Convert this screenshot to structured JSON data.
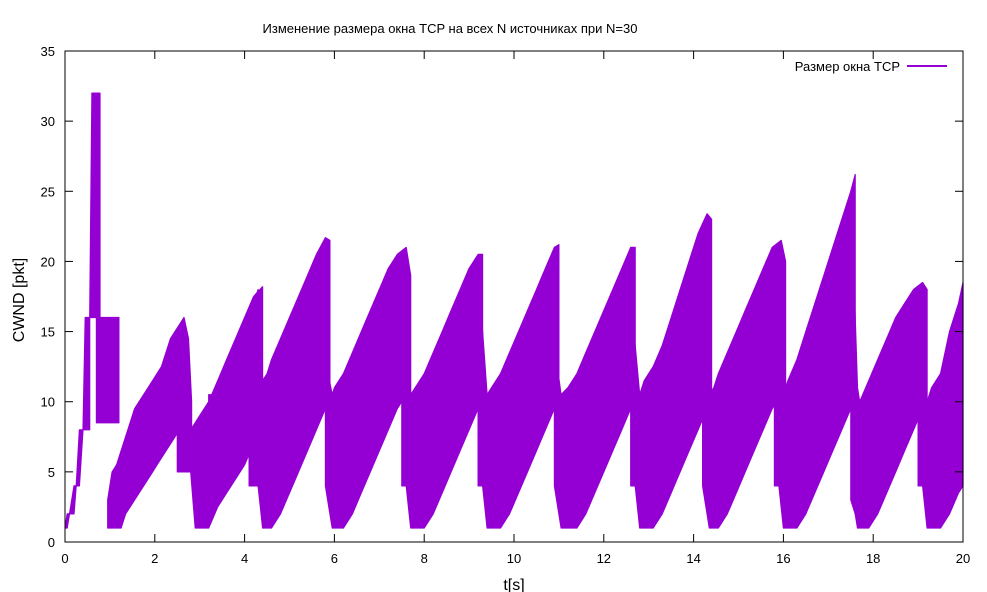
{
  "chart_data": {
    "type": "line",
    "title": "Изменение размера окна TCP на всех N источниках  при N=30",
    "xlabel": "t[s]",
    "ylabel": "CWND [pkt]",
    "xlim": [
      0,
      20
    ],
    "ylim": [
      0,
      35
    ],
    "xticks": [
      0,
      2,
      4,
      6,
      8,
      10,
      12,
      14,
      16,
      18,
      20
    ],
    "yticks": [
      0,
      5,
      10,
      15,
      20,
      25,
      30,
      35
    ],
    "xtick_labels": [
      "0",
      "2",
      "4",
      "6",
      "8",
      "10",
      "12",
      "14",
      "16",
      "18",
      "20"
    ],
    "ytick_labels": [
      "0",
      "5",
      "10",
      "15",
      "20",
      "25",
      "30",
      "35"
    ],
    "grid": false,
    "legend_position": "top-right",
    "series": [
      {
        "name": "Размер окна TCP",
        "color": "#9400d3",
        "bands": [
          {
            "x": [
              0.0,
              0.05,
              0.1,
              0.2,
              0.25,
              0.32,
              0.4,
              0.45,
              0.55
            ],
            "lo": [
              1,
              1,
              2,
              2,
              4,
              4,
              8,
              8,
              8
            ],
            "hi": [
              1,
              2,
              2,
              4,
              4,
              8,
              8,
              16,
              16
            ]
          },
          {
            "x": [
              0.55,
              0.6,
              0.62,
              0.7,
              0.75,
              0.78
            ],
            "lo": [
              16,
              16,
              16,
              16,
              16,
              16
            ],
            "hi": [
              16,
              32,
              32,
              32,
              32,
              32
            ]
          },
          {
            "x": [
              0.7,
              0.75,
              0.8,
              0.9,
              1.0,
              1.1,
              1.15,
              1.2
            ],
            "lo": [
              8.5,
              8.5,
              8.5,
              8.5,
              8.5,
              8.5,
              8.5,
              8.5
            ],
            "hi": [
              16,
              16,
              16,
              16,
              16,
              16,
              16,
              16
            ]
          },
          {
            "x": [
              0.95,
              1.0,
              1.05,
              1.15,
              1.25,
              1.35,
              1.45,
              1.55,
              1.65,
              1.75,
              1.85,
              1.95,
              2.05,
              2.15,
              2.25,
              2.35,
              2.45,
              2.55,
              2.65,
              2.75,
              2.82
            ],
            "lo": [
              1,
              1,
              1,
              1,
              1,
              2,
              2.5,
              3,
              3.5,
              4,
              4.5,
              5,
              5.5,
              6,
              6.5,
              7,
              7.5,
              8,
              8.5,
              9,
              5.5
            ],
            "hi": [
              3,
              4,
              5,
              5.5,
              6.5,
              7.5,
              8.5,
              9.5,
              10,
              10.5,
              11,
              11.5,
              12,
              12.5,
              13.5,
              14.5,
              15,
              15.5,
              16,
              14.5,
              10
            ]
          },
          {
            "x": [
              2.5,
              2.6,
              2.7,
              2.8,
              2.9,
              3.0,
              3.1,
              3.2,
              3.4,
              3.6,
              3.8,
              4.0,
              4.2,
              4.4
            ],
            "lo": [
              5,
              5,
              5,
              5,
              1,
              1,
              1,
              1,
              2.5,
              3.5,
              4.5,
              5.5,
              7,
              9
            ],
            "hi": [
              12,
              13,
              14,
              8,
              8.5,
              9,
              9.5,
              10,
              11.5,
              13,
              14.5,
              16,
              17.5,
              18.2
            ]
          },
          {
            "x": [
              3.2,
              3.4,
              3.6,
              3.8,
              4.0,
              4.2,
              4.4,
              4.5
            ],
            "lo": [
              7.5,
              8,
              8.5,
              9,
              9.5,
              10,
              10,
              10
            ],
            "hi": [
              10.5,
              10.5,
              10.8,
              10.8,
              11,
              11,
              11,
              11
            ]
          },
          {
            "x": [
              4.1,
              4.3,
              4.4,
              4.5,
              4.6,
              4.8,
              5.0,
              5.2,
              5.4,
              5.6,
              5.8,
              5.9
            ],
            "lo": [
              4,
              4,
              1,
              1,
              1,
              2,
              3.5,
              5,
              6.5,
              8,
              9.5,
              10.5
            ],
            "hi": [
              16,
              18,
              11.5,
              12,
              13,
              14.5,
              16,
              17.5,
              19,
              20.5,
              21.7,
              21.5
            ]
          },
          {
            "x": [
              5.8,
              5.95,
              6.0,
              6.2,
              6.4,
              6.6,
              6.8,
              7.0,
              7.2,
              7.4,
              7.6,
              7.7
            ],
            "lo": [
              4,
              1,
              1,
              1,
              2,
              3.5,
              5,
              6.5,
              8,
              9.5,
              10.5,
              10.5
            ],
            "hi": [
              13,
              10.5,
              11,
              12,
              13.5,
              15,
              16.5,
              18,
              19.5,
              20.5,
              21,
              19
            ]
          },
          {
            "x": [
              7.5,
              7.6,
              7.7,
              7.8,
              8.0,
              8.2,
              8.4,
              8.6,
              8.8,
              9.0,
              9.2,
              9.3
            ],
            "lo": [
              4,
              4,
              1,
              1,
              1,
              2,
              3.5,
              5,
              6.5,
              8,
              9.5,
              10.5
            ],
            "hi": [
              17,
              14,
              10.5,
              11,
              12,
              13.5,
              15,
              16.5,
              18,
              19.5,
              20.5,
              20.5
            ]
          },
          {
            "x": [
              9.2,
              9.3,
              9.4,
              9.5,
              9.7,
              9.9,
              10.1,
              10.3,
              10.5,
              10.7,
              10.9,
              11.0
            ],
            "lo": [
              4,
              4,
              1,
              1,
              1,
              2,
              3.5,
              5,
              6.5,
              8,
              9.5,
              10.5
            ],
            "hi": [
              18,
              15,
              10.5,
              11,
              12,
              13.5,
              15,
              16.5,
              18,
              19.5,
              21,
              21.2
            ]
          },
          {
            "x": [
              10.9,
              11.05,
              11.2,
              11.4,
              11.6,
              11.8,
              12.0,
              12.2,
              12.4,
              12.6,
              12.7
            ],
            "lo": [
              4,
              1,
              1,
              1,
              2,
              3.5,
              5,
              6.5,
              8,
              9.5,
              9.5
            ],
            "hi": [
              14,
              10.5,
              11,
              12,
              13.5,
              15,
              16.5,
              18,
              19.5,
              21,
              21
            ]
          },
          {
            "x": [
              12.6,
              12.7,
              12.8,
              12.9,
              13.1,
              13.3,
              13.5,
              13.7,
              13.9,
              14.1,
              14.3,
              14.4
            ],
            "lo": [
              4,
              4,
              1,
              1,
              1,
              2,
              3.5,
              5,
              6.5,
              8,
              9.5,
              10.5
            ],
            "hi": [
              17,
              14,
              10.5,
              11.5,
              12.5,
              14,
              16,
              18,
              20,
              22,
              23.4,
              23
            ]
          },
          {
            "x": [
              14.2,
              14.35,
              14.45,
              14.55,
              14.75,
              14.95,
              15.15,
              15.35,
              15.55,
              15.75,
              15.95,
              16.05
            ],
            "lo": [
              4,
              1,
              1,
              1,
              2,
              3.5,
              5,
              6.5,
              8,
              9.5,
              10.5,
              10.5
            ],
            "hi": [
              18,
              10.5,
              11,
              12,
              13.5,
              15,
              16.5,
              18,
              19.5,
              21,
              21.5,
              20
            ]
          },
          {
            "x": [
              15.8,
              15.9,
              16.0,
              16.1,
              16.3,
              16.5,
              16.7,
              16.9,
              17.1,
              17.3,
              17.5,
              17.6
            ],
            "lo": [
              4,
              4,
              1,
              1,
              1,
              2,
              3.5,
              5,
              6.5,
              8,
              9.5,
              10.5
            ],
            "hi": [
              20,
              15,
              10.5,
              11.5,
              13,
              15,
              17,
              19,
              21,
              23,
              25,
              26.2
            ]
          },
          {
            "x": [
              17.5,
              17.6,
              17.65,
              17.7,
              17.9,
              18.1,
              18.3,
              18.5,
              18.7,
              18.9,
              19.1,
              19.2
            ],
            "lo": [
              3,
              2,
              1,
              1,
              1,
              2,
              3.5,
              5,
              6.5,
              8,
              9.5,
              10
            ],
            "hi": [
              25,
              16,
              11,
              10,
              11.5,
              13,
              14.5,
              16,
              17,
              18,
              18.5,
              18
            ]
          },
          {
            "x": [
              19.0,
              19.1,
              19.2,
              19.3,
              19.5,
              19.7,
              19.9,
              20.0
            ],
            "lo": [
              4,
              4,
              1,
              1,
              1,
              2,
              3.5,
              4
            ],
            "hi": [
              14,
              14,
              10,
              11,
              12,
              15,
              17,
              18.5
            ]
          }
        ]
      }
    ]
  }
}
